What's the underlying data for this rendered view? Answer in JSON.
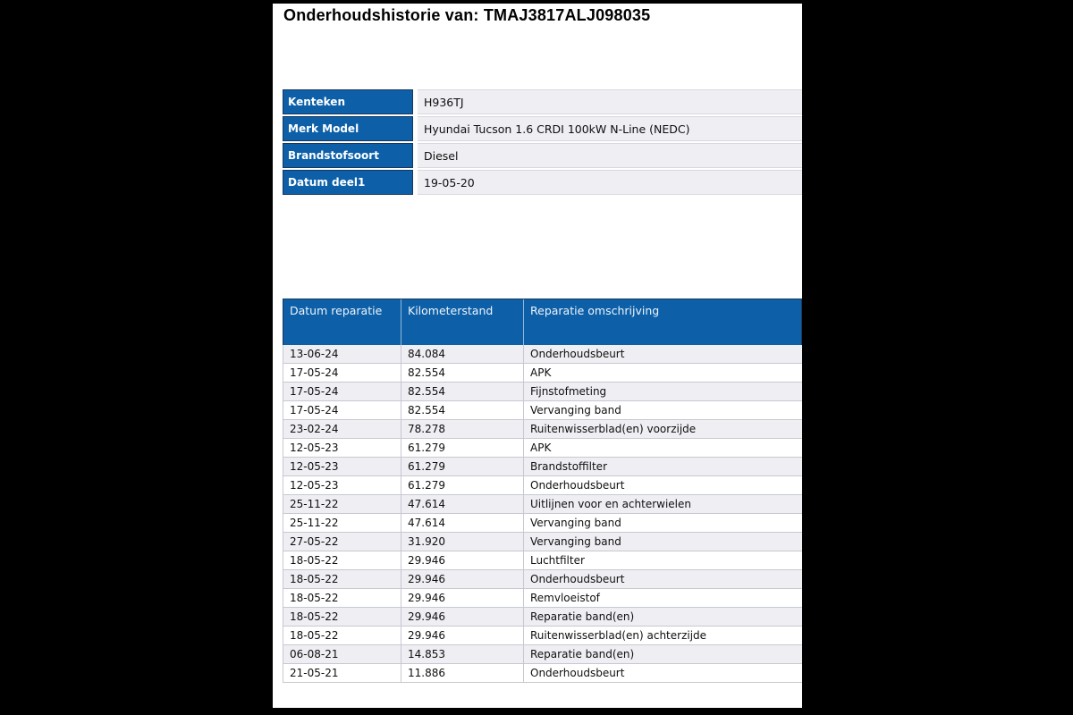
{
  "title": "Onderhoudshistorie van: TMAJ3817ALJ098035",
  "info_table": {
    "rows": [
      {
        "label": "Kenteken",
        "value": "H936TJ"
      },
      {
        "label": "Merk Model",
        "value": "Hyundai Tucson 1.6 CRDI 100kW N-Line (NEDC)"
      },
      {
        "label": "Brandstofsoort",
        "value": "Diesel"
      },
      {
        "label": "Datum deel1",
        "value": "19-05-20"
      }
    ]
  },
  "maintenance_table": {
    "columns": [
      "Datum reparatie",
      "Kilometerstand",
      "Reparatie omschrijving"
    ],
    "rows": [
      [
        "13-06-24",
        "84.084",
        "Onderhoudsbeurt"
      ],
      [
        "17-05-24",
        "82.554",
        "APK"
      ],
      [
        "17-05-24",
        "82.554",
        "Fijnstofmeting"
      ],
      [
        "17-05-24",
        "82.554",
        "Vervanging band"
      ],
      [
        "23-02-24",
        "78.278",
        "Ruitenwisserblad(en) voorzijde"
      ],
      [
        "12-05-23",
        "61.279",
        "APK"
      ],
      [
        "12-05-23",
        "61.279",
        "Brandstoffilter"
      ],
      [
        "12-05-23",
        "61.279",
        "Onderhoudsbeurt"
      ],
      [
        "25-11-22",
        "47.614",
        "Uitlijnen voor en achterwielen"
      ],
      [
        "25-11-22",
        "47.614",
        "Vervanging band"
      ],
      [
        "27-05-22",
        "31.920",
        "Vervanging band"
      ],
      [
        "18-05-22",
        "29.946",
        "Luchtfilter"
      ],
      [
        "18-05-22",
        "29.946",
        "Onderhoudsbeurt"
      ],
      [
        "18-05-22",
        "29.946",
        "Remvloeistof"
      ],
      [
        "18-05-22",
        "29.946",
        "Reparatie band(en)"
      ],
      [
        "18-05-22",
        "29.946",
        "Ruitenwisserblad(en) achterzijde"
      ],
      [
        "06-08-21",
        "14.853",
        "Reparatie band(en)"
      ],
      [
        "21-05-21",
        "11.886",
        "Onderhoudsbeurt"
      ]
    ]
  },
  "colors": {
    "header_blue": "#0d60a8",
    "border_navy": "#17375e",
    "row_stripe": "#eeeef3",
    "row_border": "#c6c9d2",
    "page_bg": "#ffffff",
    "frame_bg": "#000000"
  }
}
